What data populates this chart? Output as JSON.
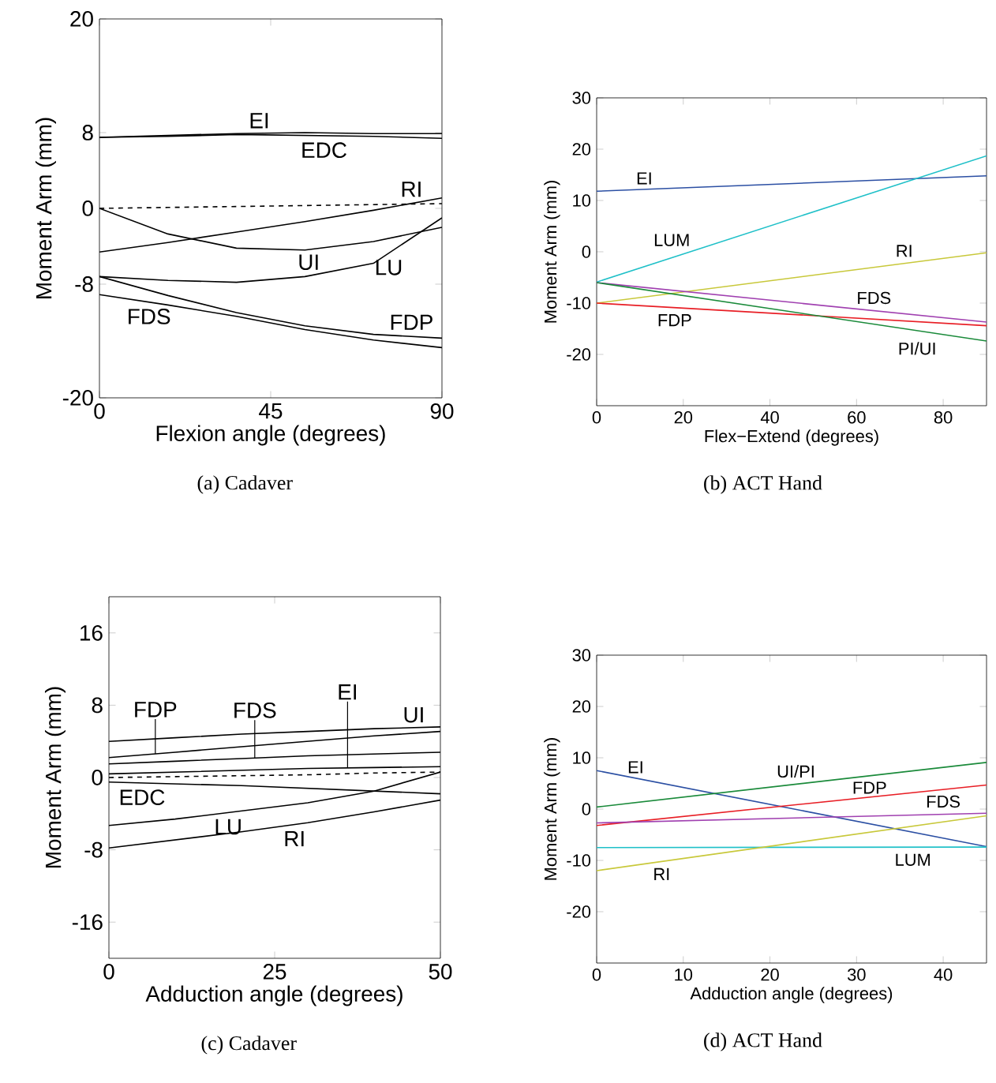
{
  "chart_data": [
    {
      "type": "line",
      "xlabel": "Flexion angle (degrees)",
      "ylabel": "Moment Arm (mm)",
      "xlim": [
        0,
        90
      ],
      "ylim": [
        -20,
        20
      ],
      "xticks": [
        0,
        45,
        90
      ],
      "yticks": [
        -20,
        -8,
        0,
        8,
        20
      ],
      "x": [
        0,
        18,
        36,
        54,
        72,
        90
      ],
      "series": [
        {
          "name": "EI",
          "color": "#000000",
          "values": [
            7.5,
            7.7,
            7.9,
            8.0,
            7.9,
            7.9
          ]
        },
        {
          "name": "EDC",
          "color": "#000000",
          "values": [
            7.5,
            7.6,
            7.8,
            7.7,
            7.6,
            7.4
          ]
        },
        {
          "color": "#000000",
          "line_style": "dashed",
          "values": [
            0,
            0.1,
            0.2,
            0.3,
            0.4,
            0.5
          ]
        },
        {
          "name": "RI",
          "color": "#000000",
          "values": [
            -4.6,
            -3.6,
            -2.5,
            -1.4,
            -0.2,
            1.1
          ]
        },
        {
          "name": "UI",
          "color": "#000000",
          "values": [
            0,
            -2.7,
            -4.2,
            -4.4,
            -3.5,
            -2.0
          ]
        },
        {
          "name": "LU",
          "color": "#000000",
          "values": [
            -7.2,
            -7.6,
            -7.8,
            -7.2,
            -5.8,
            -1.0
          ]
        },
        {
          "name": "FDP",
          "color": "#000000",
          "values": [
            -7.2,
            -9.2,
            -11.0,
            -12.4,
            -13.3,
            -13.7
          ]
        },
        {
          "name": "FDS",
          "color": "#000000",
          "values": [
            -9.1,
            -10.2,
            -11.4,
            -12.8,
            -13.9,
            -14.7
          ]
        }
      ],
      "annotations": [
        "(a)  Cadaver"
      ]
    },
    {
      "type": "line",
      "xlabel": "Flex−Extend (degrees)",
      "ylabel": "Moment Arm (mm)",
      "xlim": [
        0,
        90
      ],
      "ylim": [
        -30,
        30
      ],
      "xticks": [
        0,
        20,
        40,
        60,
        80
      ],
      "yticks": [
        -20,
        -10,
        0,
        10,
        20,
        30
      ],
      "x": [
        0,
        90
      ],
      "series": [
        {
          "name": "EI",
          "color": "#2b4fa3",
          "values": [
            11.8,
            14.8
          ]
        },
        {
          "name": "LUM",
          "color": "#1fc0c8",
          "values": [
            -5.9,
            18.7
          ]
        },
        {
          "name": "RI",
          "color": "#c8c83a",
          "values": [
            -10.0,
            -0.2
          ]
        },
        {
          "name": "FDS",
          "color": "#a040b0",
          "values": [
            -6.0,
            -13.7
          ]
        },
        {
          "name": "FDP",
          "color": "#e81e25",
          "values": [
            -10.0,
            -14.4
          ]
        },
        {
          "name": "PI/UI",
          "color": "#1a8a3a",
          "values": [
            -6.0,
            -17.4
          ]
        }
      ],
      "annotations": [
        "(b)  ACT Hand"
      ]
    },
    {
      "type": "line",
      "xlabel": "Adduction angle (degrees)",
      "ylabel": "Moment Arm (mm)",
      "xlim": [
        0,
        50
      ],
      "ylim": [
        -20,
        20
      ],
      "xticks": [
        0,
        25,
        50
      ],
      "yticks": [
        -16,
        -8,
        0,
        8,
        16
      ],
      "x": [
        0,
        10,
        20,
        30,
        40,
        50
      ],
      "series": [
        {
          "name": "UI",
          "color": "#000000",
          "values": [
            4.0,
            4.4,
            4.8,
            5.1,
            5.4,
            5.6
          ]
        },
        {
          "name": "FDP",
          "color": "#000000",
          "values": [
            2.2,
            2.8,
            3.4,
            4.0,
            4.6,
            5.1
          ]
        },
        {
          "name": "FDS",
          "color": "#000000",
          "values": [
            1.5,
            1.8,
            2.1,
            2.4,
            2.6,
            2.8
          ]
        },
        {
          "name": "EI",
          "color": "#000000",
          "values": [
            0.4,
            0.6,
            0.8,
            1.0,
            1.1,
            1.2
          ]
        },
        {
          "color": "#000000",
          "line_style": "dashed",
          "values": [
            0,
            0.1,
            0.2,
            0.3,
            0.5,
            0.6
          ]
        },
        {
          "name": "EDC",
          "color": "#000000",
          "values": [
            -0.5,
            -0.7,
            -0.9,
            -1.2,
            -1.5,
            -1.8
          ]
        },
        {
          "name": "LU",
          "color": "#000000",
          "values": [
            -5.3,
            -4.6,
            -3.7,
            -2.8,
            -1.5,
            0.6
          ]
        },
        {
          "name": "RI",
          "color": "#000000",
          "values": [
            -7.8,
            -6.9,
            -6.0,
            -5.0,
            -3.8,
            -2.5
          ]
        }
      ],
      "annotations": [
        "(c)  Cadaver"
      ]
    },
    {
      "type": "line",
      "xlabel": "Adduction angle (degrees)",
      "ylabel": "Moment Arm (mm)",
      "xlim": [
        0,
        45
      ],
      "ylim": [
        -30,
        30
      ],
      "xticks": [
        0,
        10,
        20,
        30,
        40
      ],
      "yticks": [
        -20,
        -10,
        0,
        10,
        20,
        30
      ],
      "x": [
        0,
        45
      ],
      "series": [
        {
          "name": "EI",
          "color": "#2b4fa3",
          "values": [
            7.5,
            -7.3
          ]
        },
        {
          "name": "UI/PI",
          "color": "#1a8a3a",
          "values": [
            0.4,
            9.1
          ]
        },
        {
          "name": "FDP",
          "color": "#e81e25",
          "values": [
            -3.2,
            4.7
          ]
        },
        {
          "name": "FDS",
          "color": "#a040b0",
          "values": [
            -2.7,
            -0.8
          ]
        },
        {
          "name": "LUM",
          "color": "#1fc0c8",
          "values": [
            -7.5,
            -7.4
          ]
        },
        {
          "name": "RI",
          "color": "#c8c83a",
          "values": [
            -12.0,
            -1.3
          ]
        }
      ],
      "annotations": [
        "(d)  ACT Hand"
      ]
    }
  ]
}
